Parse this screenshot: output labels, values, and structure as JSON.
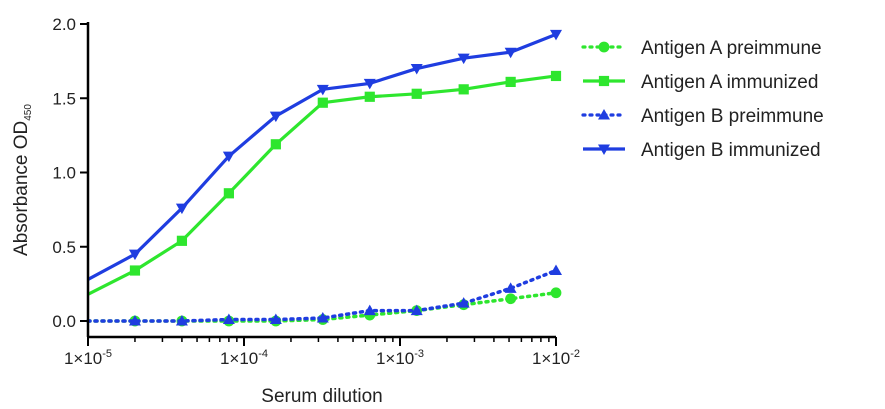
{
  "chart_data": {
    "type": "line",
    "xlabel": "Serum dilution",
    "ylabel": {
      "base": "Absorbance OD",
      "subscript": "450"
    },
    "x_scale": "log",
    "xlim": [
      1e-05,
      0.01
    ],
    "ylim": [
      0,
      2.0
    ],
    "x_ticks": [
      {
        "value": 1e-05,
        "base": "1×10",
        "exp": "-5"
      },
      {
        "value": 0.0001,
        "base": "1×10",
        "exp": "-4"
      },
      {
        "value": 0.001,
        "base": "1×10",
        "exp": "-3"
      },
      {
        "value": 0.01,
        "base": "1×10",
        "exp": "-2"
      }
    ],
    "y_ticks": [
      {
        "value": 0,
        "label": "0.0"
      },
      {
        "value": 0.5,
        "label": "0.5"
      },
      {
        "value": 1.0,
        "label": "1.0"
      },
      {
        "value": 1.5,
        "label": "1.5"
      },
      {
        "value": 2.0,
        "label": "2.0"
      }
    ],
    "grid": false,
    "legend_position": "right",
    "x": [
      1e-05,
      2e-05,
      4e-05,
      8e-05,
      0.00016,
      0.00032,
      0.00064,
      0.00128,
      0.00256,
      0.00512,
      0.01
    ],
    "series": [
      {
        "name": "Antigen A preimmune",
        "color": "#2ee62e",
        "marker": "circle",
        "dash": "dotted",
        "values": [
          0.0,
          0.0,
          0.0,
          0.0,
          0.0,
          0.01,
          0.04,
          0.07,
          0.11,
          0.15,
          0.19
        ]
      },
      {
        "name": "Antigen A immunized",
        "color": "#2ee62e",
        "marker": "square",
        "dash": "solid",
        "values": [
          0.18,
          0.34,
          0.54,
          0.86,
          1.19,
          1.47,
          1.51,
          1.53,
          1.56,
          1.61,
          1.65
        ]
      },
      {
        "name": "Antigen B preimmune",
        "color": "#1f3de0",
        "marker": "triangle-up",
        "dash": "dotted",
        "values": [
          0.0,
          0.0,
          0.0,
          0.01,
          0.01,
          0.02,
          0.07,
          0.07,
          0.12,
          0.22,
          0.34
        ]
      },
      {
        "name": "Antigen B immunized",
        "color": "#1f3de0",
        "marker": "triangle-down",
        "dash": "solid",
        "values": [
          0.28,
          0.45,
          0.76,
          1.11,
          1.38,
          1.56,
          1.6,
          1.7,
          1.77,
          1.81,
          1.93
        ]
      }
    ]
  }
}
